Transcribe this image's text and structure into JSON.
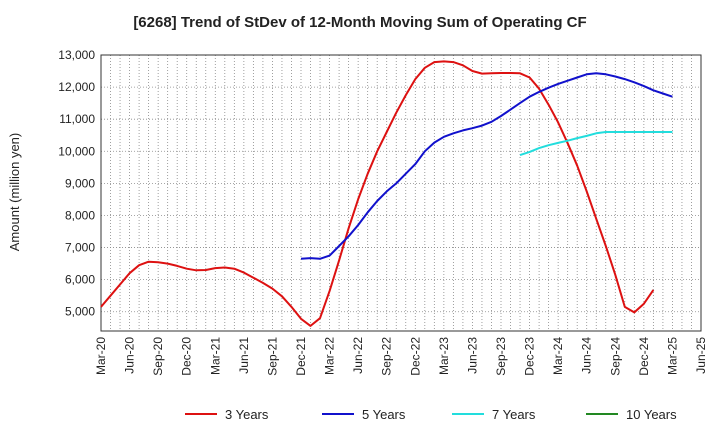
{
  "chart_data": {
    "type": "line",
    "title": "[6268]  Trend of StDev of 12-Month Moving Sum of Operating CF",
    "ylabel": "Amount (million yen)",
    "xlabel": "",
    "ylim": [
      4400,
      13000
    ],
    "yticks": [
      5000,
      6000,
      7000,
      8000,
      9000,
      10000,
      11000,
      12000,
      13000
    ],
    "ytick_labels": [
      "5,000",
      "6,000",
      "7,000",
      "8,000",
      "9,000",
      "10,000",
      "11,000",
      "12,000",
      "13,000"
    ],
    "x_start": "Mar-20",
    "x_end": "Jun-25",
    "xtick_labels": [
      "Mar-20",
      "Jun-20",
      "Sep-20",
      "Dec-20",
      "Mar-21",
      "Jun-21",
      "Sep-21",
      "Dec-21",
      "Mar-22",
      "Jun-22",
      "Sep-22",
      "Dec-22",
      "Mar-23",
      "Jun-23",
      "Sep-23",
      "Dec-23",
      "Mar-24",
      "Jun-24",
      "Sep-24",
      "Dec-24",
      "Mar-25",
      "Jun-25"
    ],
    "grid": true,
    "legend_position": "bottom",
    "series": [
      {
        "name": "3 Years",
        "color": "#dd1111",
        "x": [
          "Mar-20",
          "Apr-20",
          "May-20",
          "Jun-20",
          "Jul-20",
          "Aug-20",
          "Sep-20",
          "Oct-20",
          "Nov-20",
          "Dec-20",
          "Jan-21",
          "Feb-21",
          "Mar-21",
          "Apr-21",
          "May-21",
          "Jun-21",
          "Jul-21",
          "Aug-21",
          "Sep-21",
          "Oct-21",
          "Nov-21",
          "Dec-21",
          "Jan-22",
          "Feb-22",
          "Mar-22",
          "Apr-22",
          "May-22",
          "Jun-22",
          "Jul-22",
          "Aug-22",
          "Sep-22",
          "Oct-22",
          "Nov-22",
          "Dec-22",
          "Jan-23",
          "Feb-23",
          "Mar-23",
          "Apr-23",
          "May-23",
          "Jun-23",
          "Jul-23",
          "Aug-23",
          "Sep-23",
          "Oct-23",
          "Nov-23",
          "Dec-23",
          "Jan-24",
          "Feb-24",
          "Mar-24",
          "Apr-24",
          "May-24",
          "Jun-24",
          "Jul-24",
          "Aug-24",
          "Sep-24",
          "Oct-24",
          "Nov-24",
          "Dec-24",
          "Jan-25",
          "Feb-25",
          "Mar-25"
        ],
        "values": [
          5150,
          5500,
          5850,
          6200,
          6450,
          6560,
          6540,
          6500,
          6430,
          6340,
          6290,
          6300,
          6360,
          6380,
          6340,
          6220,
          6060,
          5900,
          5720,
          5480,
          5150,
          4780,
          4560,
          4800,
          5650,
          6600,
          7600,
          8500,
          9300,
          10000,
          10600,
          11200,
          11750,
          12250,
          12600,
          12780,
          12800,
          12780,
          12680,
          12500,
          12420,
          12430,
          12440,
          12440,
          12430,
          12300,
          11950,
          11450,
          10900,
          10250,
          9550,
          8750,
          7900,
          7050,
          6150,
          5150,
          4980,
          5250,
          5680,
          null,
          null
        ]
      },
      {
        "name": "5 Years",
        "color": "#1111cc",
        "x": [
          "Dec-21",
          "Jan-22",
          "Feb-22",
          "Mar-22",
          "Apr-22",
          "May-22",
          "Jun-22",
          "Jul-22",
          "Aug-22",
          "Sep-22",
          "Oct-22",
          "Nov-22",
          "Dec-22",
          "Jan-23",
          "Feb-23",
          "Mar-23",
          "Apr-23",
          "May-23",
          "Jun-23",
          "Jul-23",
          "Aug-23",
          "Sep-23",
          "Oct-23",
          "Nov-23",
          "Dec-23",
          "Jan-24",
          "Feb-24",
          "Mar-24",
          "Apr-24",
          "May-24",
          "Jun-24",
          "Jul-24",
          "Aug-24",
          "Sep-24",
          "Oct-24",
          "Nov-24",
          "Dec-24",
          "Jan-25",
          "Feb-25",
          "Mar-25"
        ],
        "values": [
          6650,
          6670,
          6650,
          6750,
          7050,
          7350,
          7700,
          8100,
          8450,
          8750,
          9000,
          9300,
          9600,
          10000,
          10270,
          10450,
          10560,
          10650,
          10720,
          10800,
          10920,
          11100,
          11300,
          11500,
          11700,
          11850,
          11980,
          12100,
          12200,
          12300,
          12400,
          12430,
          12400,
          12330,
          12250,
          12150,
          12030,
          11900,
          11800,
          11700
        ]
      },
      {
        "name": "7 Years",
        "color": "#22dddd",
        "x": [
          "Nov-23",
          "Dec-23",
          "Jan-24",
          "Feb-24",
          "Mar-24",
          "Apr-24",
          "May-24",
          "Jun-24",
          "Jul-24",
          "Aug-24",
          "Sep-24",
          "Oct-24",
          "Nov-24",
          "Dec-24",
          "Jan-25",
          "Feb-25",
          "Mar-25"
        ],
        "values": [
          9880,
          9980,
          10100,
          10190,
          10260,
          10330,
          10410,
          10480,
          10560,
          10600,
          10600,
          10600,
          10600,
          10600,
          10600,
          10600,
          10600
        ]
      },
      {
        "name": "10 Years",
        "color": "#228822",
        "x": [],
        "values": []
      }
    ]
  }
}
